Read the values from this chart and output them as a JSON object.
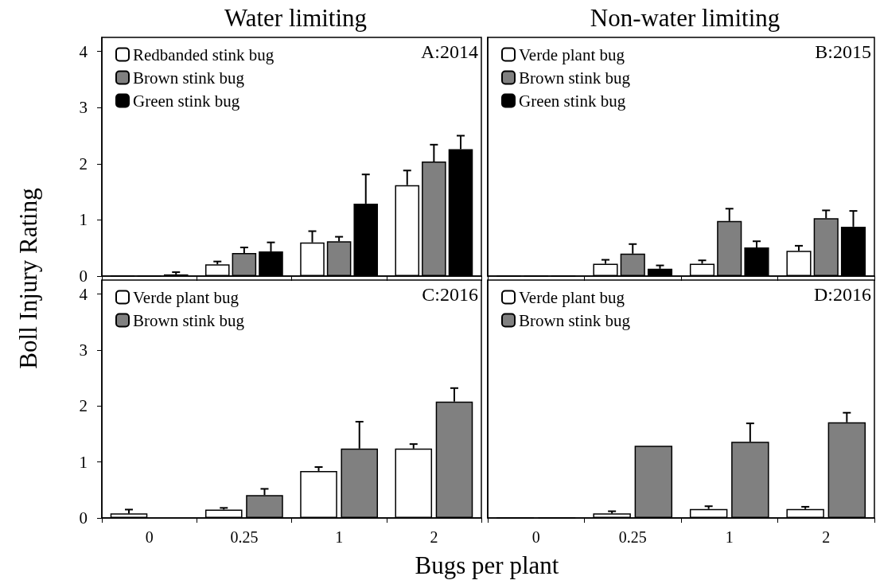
{
  "chart_data": [
    {
      "type": "bar",
      "title": "Water limiting",
      "ylabel": "Boll Injury Rating",
      "annotations": [
        "A:2014"
      ],
      "categories": [
        "0",
        "0.25",
        "1",
        "2"
      ],
      "ylim": [
        0,
        4.25
      ],
      "yticks": [
        0,
        1,
        2,
        3,
        4
      ],
      "grid": false,
      "legend": "top left",
      "tick_labels": "y",
      "series": [
        {
          "name": "Redbanded stink bug",
          "color": "#ffffff",
          "values": [
            0.01,
            0.21,
            0.6,
            1.62
          ],
          "errors": [
            null,
            0.05,
            0.2,
            0.26
          ]
        },
        {
          "name": "Brown stink bug",
          "color": "#808080",
          "values": [
            0.01,
            0.41,
            0.62,
            2.04
          ],
          "errors": [
            null,
            0.1,
            0.08,
            0.3
          ]
        },
        {
          "name": "Green stink bug",
          "color": "#000000",
          "values": [
            0.03,
            0.44,
            1.29,
            2.26
          ],
          "errors": [
            0.04,
            0.16,
            0.52,
            0.24
          ]
        }
      ]
    },
    {
      "type": "bar",
      "title": "Non-water limiting",
      "annotations": [
        "B:2015"
      ],
      "categories": [
        "0",
        "0.25",
        "1",
        "2"
      ],
      "ylim": [
        0,
        4.25
      ],
      "yticks": [
        0,
        1,
        2,
        3,
        4
      ],
      "grid": false,
      "legend": "top left",
      "tick_labels": false,
      "series": [
        {
          "name": "Verde plant bug",
          "color": "#ffffff",
          "values": [
            0.01,
            0.22,
            0.22,
            0.45
          ],
          "errors": [
            null,
            0.07,
            0.06,
            0.09
          ]
        },
        {
          "name": "Brown stink bug",
          "color": "#808080",
          "values": [
            0.01,
            0.4,
            0.98,
            1.03
          ],
          "errors": [
            null,
            0.17,
            0.22,
            0.14
          ]
        },
        {
          "name": "Green stink bug",
          "color": "#000000",
          "values": [
            0.01,
            0.13,
            0.51,
            0.88
          ],
          "errors": [
            null,
            0.06,
            0.11,
            0.28
          ]
        }
      ]
    },
    {
      "type": "bar",
      "xlabel": "Bugs per plant",
      "annotations": [
        "C:2016"
      ],
      "categories": [
        "0",
        "0.25",
        "1",
        "2"
      ],
      "ylim": [
        0,
        4.25
      ],
      "yticks": [
        0,
        1,
        2,
        3,
        4
      ],
      "grid": false,
      "legend": "top left",
      "series": [
        {
          "name": "Verde plant bug",
          "color": "#ffffff",
          "values": [
            0.08,
            0.15,
            0.84,
            1.24
          ],
          "errors": [
            0.07,
            0.03,
            0.07,
            0.08
          ]
        },
        {
          "name": "Brown stink bug",
          "color": "#808080",
          "values": [
            null,
            0.41,
            1.24,
            2.08
          ],
          "errors": [
            null,
            0.11,
            0.48,
            0.24
          ]
        }
      ]
    },
    {
      "type": "bar",
      "annotations": [
        "D:2016"
      ],
      "categories": [
        "0",
        "0.25",
        "1",
        "2"
      ],
      "ylim": [
        0,
        4.25
      ],
      "yticks": [
        0,
        1,
        2,
        3,
        4
      ],
      "grid": false,
      "legend": "top left",
      "tick_labels": "x",
      "series": [
        {
          "name": "Verde plant bug",
          "color": "#ffffff",
          "values": [
            0.01,
            0.08,
            0.16,
            0.16
          ],
          "errors": [
            null,
            0.04,
            0.05,
            0.04
          ]
        },
        {
          "name": "Brown stink bug",
          "color": "#808080",
          "values": [
            0.01,
            1.29,
            1.36,
            1.71
          ],
          "errors": [
            null,
            null,
            0.33,
            0.17
          ]
        }
      ]
    }
  ]
}
